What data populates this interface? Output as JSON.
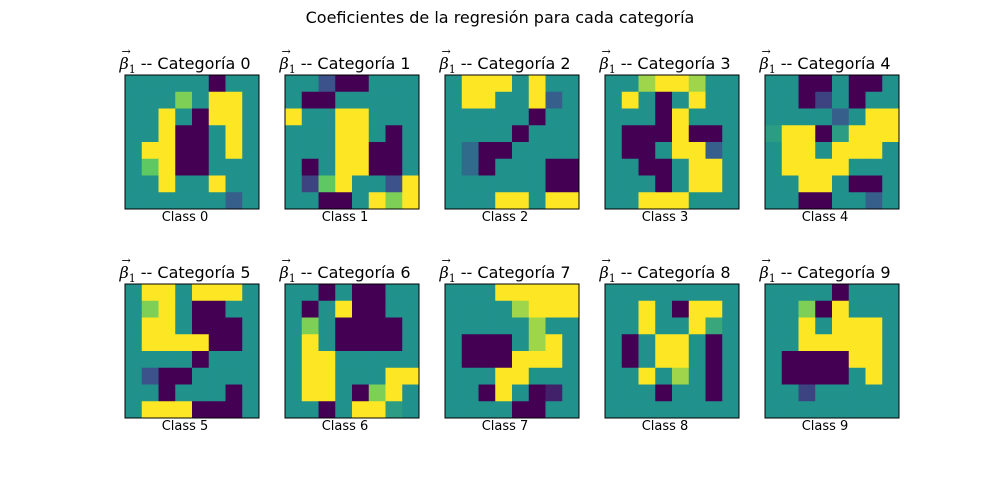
{
  "title": "Coeficientes de la regresión para cada categoría",
  "chart_data": {
    "type": "heatmap",
    "grid_size": [
      8,
      8
    ],
    "colormap": "viridis",
    "value_range": [
      -1,
      1
    ],
    "subplots": [
      {
        "title_symbol": "β",
        "title_subscript": "1",
        "title_text": " -- Categoría 0",
        "xlabel": "Class 0",
        "values": [
          [
            0,
            0,
            0,
            0,
            0,
            -1,
            0,
            0
          ],
          [
            0,
            0,
            0,
            0.6,
            0,
            1,
            1,
            0
          ],
          [
            0,
            0,
            1,
            0,
            -1,
            1,
            1,
            0
          ],
          [
            0,
            0,
            1,
            -1,
            -1,
            0,
            1,
            0
          ],
          [
            0,
            1,
            1,
            -1,
            -1,
            0,
            1,
            0
          ],
          [
            0,
            0.5,
            1,
            -1,
            -1,
            0,
            0,
            0
          ],
          [
            0,
            0,
            1,
            0,
            0,
            1,
            0,
            0
          ],
          [
            0,
            0,
            0,
            0,
            0,
            0,
            -0.4,
            0
          ]
        ]
      },
      {
        "title_symbol": "β",
        "title_subscript": "1",
        "title_text": " -- Categoría 1",
        "xlabel": "Class 1",
        "values": [
          [
            0,
            0,
            -0.5,
            -1,
            -1,
            0,
            0,
            0
          ],
          [
            0,
            -1,
            -1,
            0,
            0,
            0,
            0,
            0
          ],
          [
            1,
            0,
            0,
            1,
            1,
            0,
            0,
            0
          ],
          [
            0,
            0,
            0,
            1,
            1,
            0,
            -1,
            0
          ],
          [
            0,
            0,
            0,
            1,
            1,
            -1,
            -1,
            0
          ],
          [
            0,
            -1,
            0,
            1,
            1,
            -1,
            -1,
            0
          ],
          [
            0,
            -0.6,
            0.5,
            1,
            0,
            0,
            -0.5,
            1
          ],
          [
            0,
            0,
            -1,
            -1,
            0,
            1,
            0.6,
            1
          ]
        ]
      },
      {
        "title_symbol": "β",
        "title_subscript": "1",
        "title_text": " -- Categoría 2",
        "xlabel": "Class 2",
        "values": [
          [
            0,
            1,
            1,
            1,
            0,
            1,
            0,
            0
          ],
          [
            0,
            1,
            1,
            0,
            0,
            1,
            -0.4,
            0
          ],
          [
            0,
            0,
            0,
            0,
            0,
            -1,
            0,
            0
          ],
          [
            0,
            0,
            0,
            0,
            -1,
            0,
            0,
            0
          ],
          [
            0,
            -0.3,
            -1,
            -1,
            0,
            0,
            0,
            0
          ],
          [
            0,
            -0.3,
            -1,
            0,
            0,
            0,
            -1,
            -1
          ],
          [
            0,
            0,
            0,
            0,
            0,
            0,
            -1,
            -1
          ],
          [
            0,
            0,
            0,
            1,
            1,
            0,
            1,
            1
          ]
        ]
      },
      {
        "title_symbol": "β",
        "title_subscript": "1",
        "title_text": " -- Categoría 3",
        "xlabel": "Class 3",
        "values": [
          [
            0,
            0,
            0.7,
            1,
            1,
            0.7,
            0,
            0
          ],
          [
            0,
            1,
            0,
            -1,
            0,
            1,
            0,
            0
          ],
          [
            0,
            0,
            0,
            -1,
            1,
            0,
            0,
            0
          ],
          [
            0,
            -1,
            -1,
            -1,
            1,
            -1,
            -1,
            0
          ],
          [
            0,
            -1,
            -1,
            0,
            1,
            1,
            -0.4,
            0
          ],
          [
            0,
            0,
            -1,
            -1,
            0,
            1,
            1,
            0
          ],
          [
            0,
            0,
            0,
            -1,
            0,
            1,
            1,
            0
          ],
          [
            0,
            0,
            1,
            1,
            1,
            0,
            0,
            0
          ]
        ]
      },
      {
        "title_symbol": "β",
        "title_subscript": "1",
        "title_text": " -- Categoría 4",
        "xlabel": "Class 4",
        "values": [
          [
            0,
            0,
            -1,
            -1,
            0,
            -1,
            -1,
            0
          ],
          [
            0,
            0,
            -1,
            -0.6,
            0,
            -1,
            0,
            0
          ],
          [
            0,
            0,
            0,
            0,
            -0.4,
            0,
            1,
            1
          ],
          [
            0.1,
            1,
            1,
            -1,
            0.1,
            1,
            1,
            1
          ],
          [
            0,
            1,
            1,
            0,
            1,
            1,
            1,
            0
          ],
          [
            0,
            1,
            1,
            1,
            1,
            0,
            0,
            0
          ],
          [
            0,
            0,
            1,
            1,
            0,
            -1,
            -1,
            0
          ],
          [
            0,
            0,
            -1,
            -1,
            0,
            0,
            -0.4,
            0
          ]
        ]
      },
      {
        "title_symbol": "β",
        "title_subscript": "1",
        "title_text": " -- Categoría 5",
        "xlabel": "Class 5",
        "values": [
          [
            0,
            1,
            1,
            0,
            1,
            1,
            1,
            0
          ],
          [
            0,
            0.6,
            1,
            0,
            -1,
            -1,
            0,
            0
          ],
          [
            0,
            1,
            1,
            0,
            -1,
            -1,
            -1,
            0
          ],
          [
            0,
            1,
            1,
            1,
            1,
            -1,
            -1,
            0
          ],
          [
            0,
            0,
            0,
            0,
            -1,
            0,
            0,
            0
          ],
          [
            0,
            -0.5,
            -1,
            -1,
            0,
            0,
            0,
            0
          ],
          [
            0,
            0,
            -1,
            0,
            0,
            0,
            -1,
            0
          ],
          [
            0,
            1,
            1,
            1,
            -1,
            -1,
            -1,
            0
          ]
        ]
      },
      {
        "title_symbol": "β",
        "title_subscript": "1",
        "title_text": " -- Categoría 6",
        "xlabel": "Class 6",
        "values": [
          [
            0,
            0,
            -1,
            0,
            -1,
            -1,
            0,
            0
          ],
          [
            0,
            -1,
            0,
            1,
            -1,
            -1,
            0,
            0
          ],
          [
            0,
            0.6,
            0,
            -1,
            -1,
            -1,
            -1,
            0
          ],
          [
            0,
            1,
            0,
            -1,
            -1,
            -1,
            -1,
            0
          ],
          [
            0,
            1,
            1,
            0,
            0,
            0,
            0,
            0
          ],
          [
            0,
            1,
            1,
            0,
            0,
            0,
            1,
            1
          ],
          [
            0,
            1,
            1,
            0,
            -1,
            0.6,
            1,
            0
          ],
          [
            0,
            0,
            -1,
            0,
            1,
            1,
            0.1,
            0
          ]
        ]
      },
      {
        "title_symbol": "β",
        "title_subscript": "1",
        "title_text": " -- Categoría 7",
        "xlabel": "Class 7",
        "values": [
          [
            0,
            0,
            0,
            1,
            1,
            1,
            1,
            1
          ],
          [
            0,
            0,
            0,
            0,
            0.7,
            1,
            1,
            1
          ],
          [
            0,
            0,
            0,
            0,
            0,
            0.7,
            0,
            0
          ],
          [
            0,
            -1,
            -1,
            -1,
            0,
            0.7,
            1,
            0
          ],
          [
            0,
            -1,
            -1,
            -1,
            1,
            1,
            1,
            0
          ],
          [
            0,
            0,
            0,
            1,
            1,
            0,
            0,
            0
          ],
          [
            0,
            0,
            -1,
            1,
            0,
            -1,
            -0.8,
            0
          ],
          [
            0,
            0,
            0,
            0,
            -1,
            -1,
            0,
            0
          ]
        ]
      },
      {
        "title_symbol": "β",
        "title_subscript": "1",
        "title_text": " -- Categoría 8",
        "xlabel": "Class 8",
        "values": [
          [
            0,
            0,
            0,
            0,
            0,
            0,
            0,
            0
          ],
          [
            0,
            0,
            1,
            0,
            -1,
            1,
            1,
            0
          ],
          [
            0,
            0,
            1,
            0,
            0,
            1,
            0.2,
            0
          ],
          [
            0,
            -1,
            0,
            1,
            1,
            0,
            -1,
            0
          ],
          [
            0,
            -1,
            0,
            1,
            1,
            0,
            -1,
            0
          ],
          [
            0,
            0,
            1,
            0,
            0.7,
            0,
            -1,
            0
          ],
          [
            0,
            0,
            0,
            -1,
            0,
            0,
            -1,
            0
          ],
          [
            0,
            0,
            0,
            0,
            0,
            0,
            0,
            0
          ]
        ]
      },
      {
        "title_symbol": "β",
        "title_subscript": "1",
        "title_text": " -- Categoría 9",
        "xlabel": "Class 9",
        "values": [
          [
            0,
            0,
            0,
            0,
            -1,
            0,
            0,
            0
          ],
          [
            0,
            0,
            0.6,
            -1,
            1,
            0,
            0,
            0
          ],
          [
            0,
            0,
            1,
            0,
            1,
            1,
            1,
            0
          ],
          [
            0,
            0,
            1,
            1,
            1,
            1,
            1,
            0
          ],
          [
            0,
            -1,
            -1,
            -1,
            -1,
            1,
            1,
            0
          ],
          [
            0,
            -1,
            -1,
            -1,
            -1,
            0,
            1,
            0
          ],
          [
            0,
            0,
            -0.6,
            0,
            0,
            0,
            0,
            0
          ],
          [
            0,
            0,
            0,
            0,
            0,
            0,
            0,
            0
          ]
        ]
      }
    ]
  }
}
